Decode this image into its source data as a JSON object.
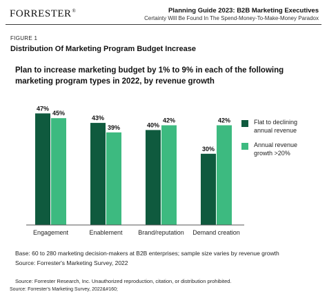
{
  "header": {
    "logo_text": "FORRESTER",
    "logo_mark": "®",
    "guide_title": "Planning Guide 2023: B2B Marketing Executives",
    "guide_subtitle": "Certainty Will Be Found In The Spend-Money-To-Make-Money Paradox"
  },
  "figure": {
    "label": "FIGURE 1",
    "title": "Distribution Of Marketing Program Budget Increase"
  },
  "colors": {
    "dark_green": "#0f5a3e",
    "light_green": "#3dba80",
    "axis": "#555555"
  },
  "chart_data": {
    "type": "bar",
    "title": "Plan to increase marketing budget by 1% to 9% in each of the following marketing program types in 2022, by revenue growth",
    "categories": [
      "Engagement",
      "Enablement",
      "Brand/reputation",
      "Demand creation"
    ],
    "series": [
      {
        "name": "Flat to declining annual revenue",
        "values": [
          47,
          43,
          40,
          30
        ],
        "color": "#0f5a3e"
      },
      {
        "name": "Annual revenue growth >20%",
        "values": [
          45,
          39,
          42,
          42
        ],
        "color": "#3dba80"
      }
    ],
    "data_labels": [
      [
        "47%",
        "43%",
        "40%",
        "30%"
      ],
      [
        "45%",
        "39%",
        "42%",
        "42%"
      ]
    ],
    "value_unit": "%",
    "ylim": [
      0,
      50
    ],
    "grid": false,
    "legend_position": "right",
    "legend_lines": [
      [
        "Flat to declining",
        "annual revenue"
      ],
      [
        "Annual revenue",
        "growth >20%"
      ]
    ]
  },
  "notes": {
    "base": "Base: 60 to 280 marketing decision-makers at B2B enterprises; sample size varies by revenue growth",
    "source": "Source: Forrester's Marketing Survey, 2022"
  },
  "footer": {
    "copyright": "Source: Forrester Research, Inc. Unauthorized reproduction, citation, or distribution prohibited.",
    "source_line": "Source: Forrester's Marketing Survey, 2022&#160;"
  }
}
